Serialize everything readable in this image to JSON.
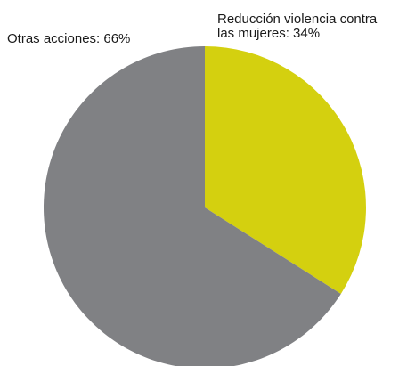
{
  "chart_data": {
    "type": "pie",
    "slices": [
      {
        "label": "Reducción violencia contra las mujeres",
        "value": 34,
        "label_lines": [
          "Reducción violencia contra",
          "las mujeres: 34%"
        ],
        "color": "#d4d00f"
      },
      {
        "label": "Otras acciones",
        "value": 66,
        "label_lines": [
          "Otras acciones: 66%"
        ],
        "color": "#808184"
      }
    ],
    "start_direction": "top",
    "direction": "clockwise",
    "legend": "none"
  }
}
